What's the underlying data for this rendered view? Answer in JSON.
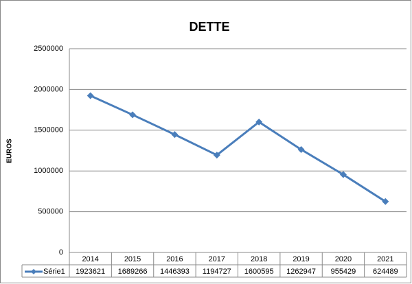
{
  "chart_data": {
    "type": "line",
    "title": "DETTE",
    "y_label": "EUROS",
    "categories": [
      "2014",
      "2015",
      "2016",
      "2017",
      "2018",
      "2019",
      "2020",
      "2021"
    ],
    "series": [
      {
        "name": "Série1",
        "color": "#4a7ebb",
        "values": [
          1923621,
          1689266,
          1446393,
          1194727,
          1600595,
          1262947,
          955429,
          624489
        ]
      }
    ],
    "ylim": [
      0,
      2500000
    ],
    "yticks": [
      0,
      500000,
      1000000,
      1500000,
      2000000,
      2500000
    ],
    "grid": true,
    "data_table": true
  }
}
